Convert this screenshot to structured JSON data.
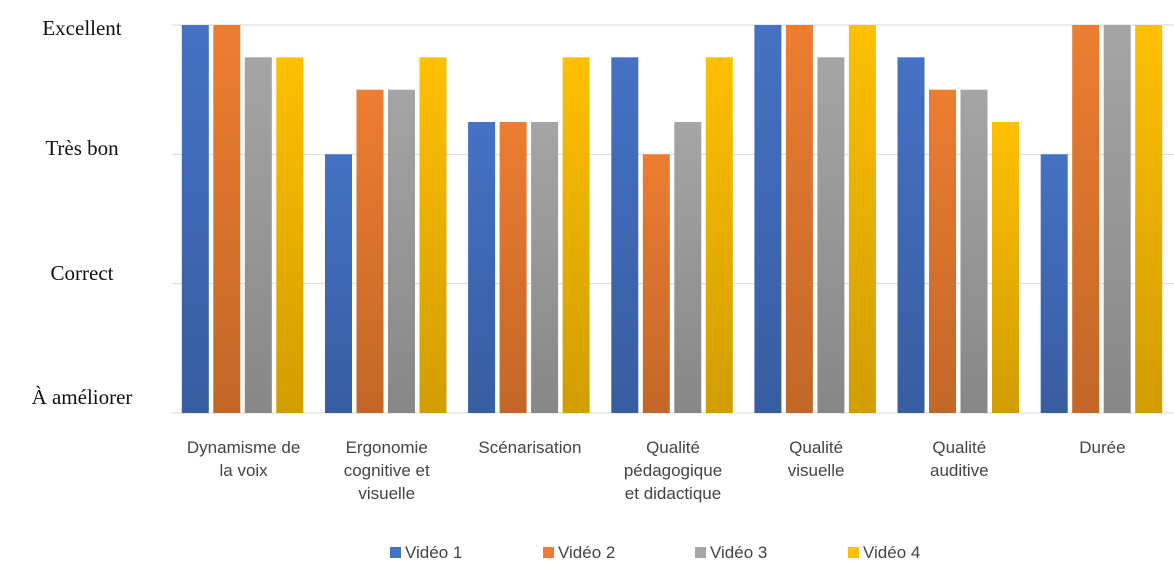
{
  "chart_data": {
    "type": "bar",
    "title": "",
    "xlabel": "",
    "ylabel": "",
    "y_levels": [
      "À améliorer",
      "Correct",
      "Très bon",
      "Excellent"
    ],
    "ylim": [
      0,
      3
    ],
    "grid": true,
    "legend_position": "bottom",
    "categories": [
      [
        "Dynamisme de",
        "la voix"
      ],
      [
        "Ergonomie",
        "cognitive et",
        "visuelle"
      ],
      [
        "Scénarisation"
      ],
      [
        "Qualité",
        "pédagogique",
        "et didactique"
      ],
      [
        "Qualité",
        "visuelle"
      ],
      [
        "Qualité",
        "auditive"
      ],
      [
        "Durée"
      ]
    ],
    "series": [
      {
        "name": "Vidéo 1",
        "color": "#4472c4",
        "values": [
          3.0,
          2.0,
          2.25,
          2.75,
          3.0,
          2.75,
          2.0
        ]
      },
      {
        "name": "Vidéo 2",
        "color": "#ed7d31",
        "values": [
          3.0,
          2.5,
          2.25,
          2.0,
          3.0,
          2.5,
          3.0
        ]
      },
      {
        "name": "Vidéo 3",
        "color": "#a5a5a5",
        "values": [
          2.75,
          2.5,
          2.25,
          2.25,
          2.75,
          2.5,
          3.0
        ]
      },
      {
        "name": "Vidéo 4",
        "color": "#ffc000",
        "values": [
          2.75,
          2.75,
          2.75,
          2.75,
          3.0,
          2.25,
          3.0
        ]
      }
    ]
  }
}
